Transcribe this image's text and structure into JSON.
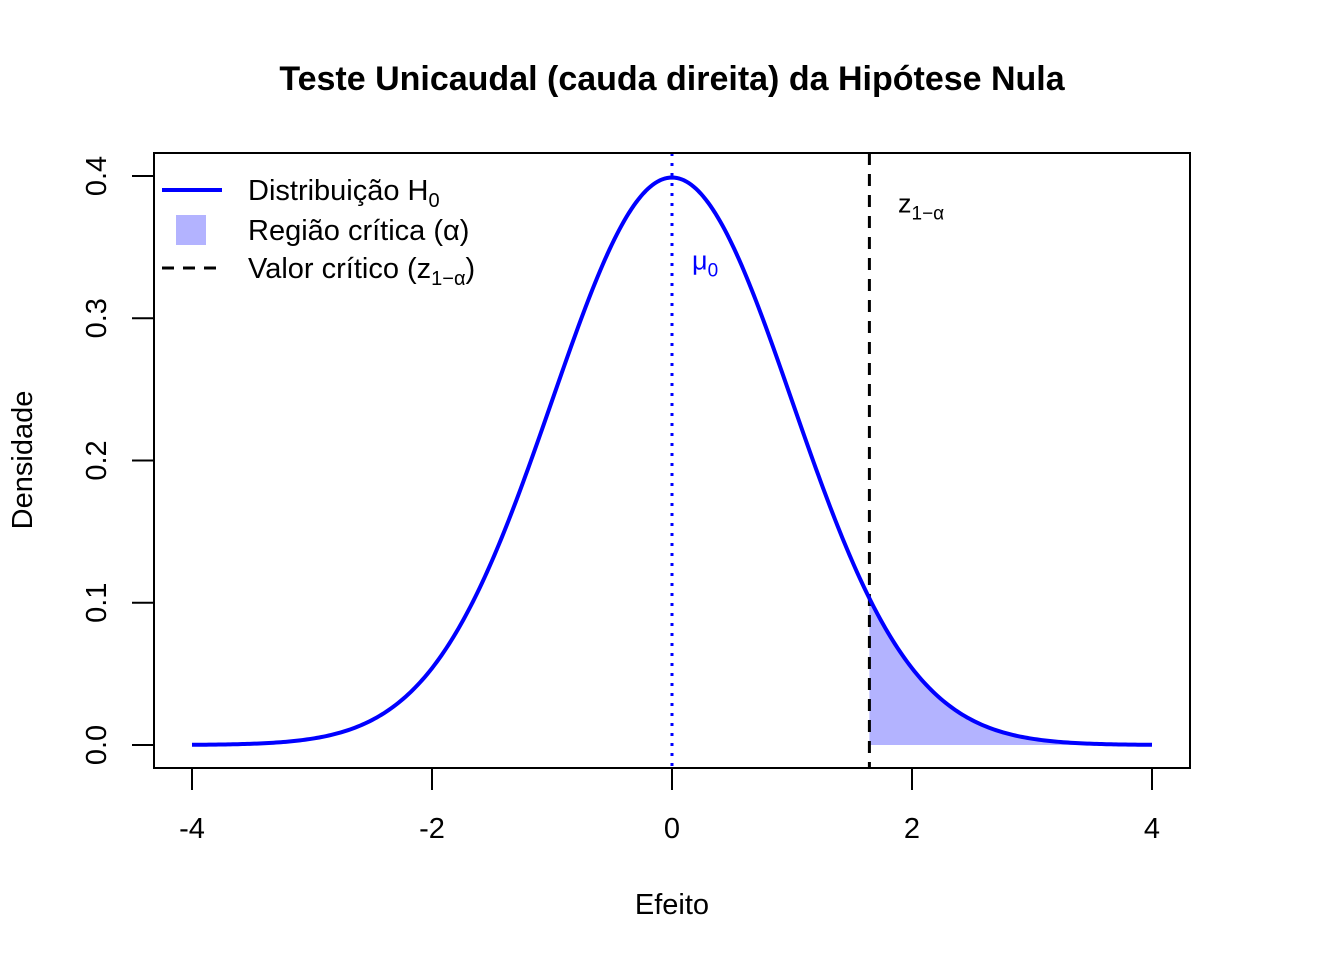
{
  "chart_data": {
    "type": "line",
    "title": "Teste Unicaudal (cauda direita) da Hipótese Nula",
    "xlabel": "Efeito",
    "ylabel": "Densidade",
    "xlim": [
      -4,
      4
    ],
    "ylim": [
      0,
      0.4
    ],
    "x_ticks": [
      -4,
      -2,
      0,
      2,
      4
    ],
    "x_tick_labels": [
      "-4",
      "-2",
      "0",
      "2",
      "4"
    ],
    "y_ticks": [
      0,
      0.1,
      0.2,
      0.3,
      0.4
    ],
    "y_tick_labels": [
      "0.0",
      "0.1",
      "0.2",
      "0.3",
      "0.4"
    ],
    "grid": false,
    "series": [
      {
        "name": "Distribuição H",
        "name_sub": "0",
        "distribution": "normal",
        "mean": 0,
        "sd": 1,
        "x_range": [
          -4,
          4
        ],
        "color": "#0000ff"
      }
    ],
    "critical_region": {
      "label": "Região crítica (α)",
      "from": 1.645,
      "to": 4,
      "color": "#b3b3ff"
    },
    "critical_value": {
      "x": 1.645,
      "label": "Valor crítico (z",
      "label_sub": "1−α",
      "label_close": ")",
      "color": "#000000"
    },
    "mean_line": {
      "x": 0,
      "color": "#0000ff"
    },
    "annotations": [
      {
        "text": "μ",
        "sub": "0",
        "x": 0.1,
        "y": 0.34,
        "color": "#0000ff"
      },
      {
        "text": "z",
        "sub": "1−α",
        "x": 1.9,
        "y": 0.38,
        "color": "#000000"
      }
    ],
    "legend": {
      "placement": "top-left"
    }
  }
}
